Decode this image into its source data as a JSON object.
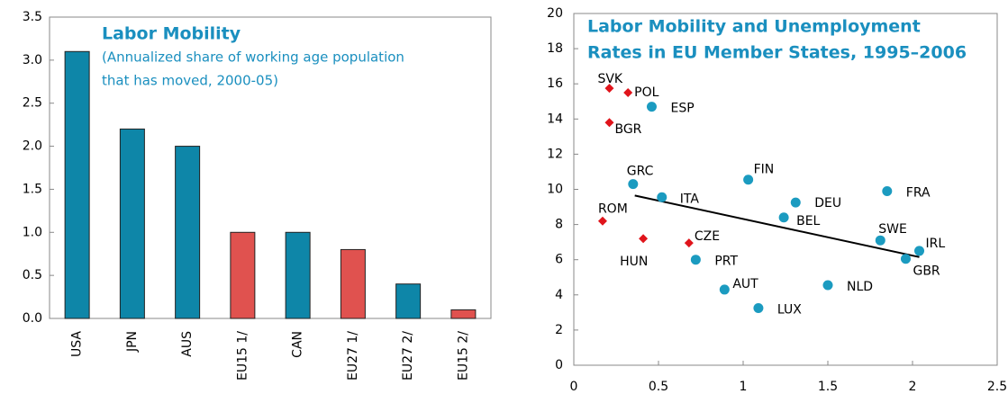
{
  "chart_data": [
    {
      "type": "bar",
      "title": "Labor Mobility",
      "subtitle": [
        "(Annualized share of working age population",
        "that has moved, 2000-05)"
      ],
      "categories": [
        "USA",
        "JPN",
        "AUS",
        "EU15 1/",
        "CAN",
        "EU27 1/",
        "EU27 2/",
        "EU15 2/"
      ],
      "values": [
        3.1,
        2.2,
        2.0,
        1.0,
        1.0,
        0.8,
        0.4,
        0.1
      ],
      "colors": [
        "#0e86a8",
        "#0e86a8",
        "#0e86a8",
        "#e0524f",
        "#0e86a8",
        "#e0524f",
        "#0e86a8",
        "#e0524f"
      ],
      "ylim": [
        0,
        3.5
      ],
      "yticks": [
        {
          "value": 0,
          "label": "0.0"
        },
        {
          "value": 0.5,
          "label": "0.5"
        },
        {
          "value": 1,
          "label": "1.0"
        },
        {
          "value": 1.5,
          "label": "1.5"
        },
        {
          "value": 2,
          "label": "2.0"
        },
        {
          "value": 2.5,
          "label": "2.5"
        },
        {
          "value": 3,
          "label": "3.0"
        },
        {
          "value": 3.5,
          "label": "3.5"
        }
      ]
    },
    {
      "type": "scatter",
      "title": [
        "Labor Mobility and Unemployment",
        "Rates in EU Member States, 1995–2006"
      ],
      "xlim": [
        0,
        2.5
      ],
      "xticks": [
        0,
        0.5,
        1,
        1.5,
        2,
        2.5
      ],
      "ylim": [
        0,
        20
      ],
      "yticks": [
        0,
        2,
        4,
        6,
        8,
        10,
        12,
        14,
        16,
        18,
        20
      ],
      "series": [
        {
          "color": "#e0141b",
          "marker": "diamond",
          "labels": [
            "SVK",
            "POL",
            "BGR",
            "ROM",
            "HUN",
            "CZE"
          ],
          "x": [
            0.21,
            0.32,
            0.21,
            0.17,
            0.41,
            0.68
          ],
          "values": [
            15.75,
            15.5,
            13.8,
            8.2,
            7.2,
            6.95
          ]
        },
        {
          "color": "#1b9bc0",
          "marker": "circle",
          "labels": [
            "ESP",
            "GRC",
            "ITA",
            "FIN",
            "DEU",
            "BEL",
            "FRA",
            "SWE",
            "IRL",
            "GBR",
            "PRT",
            "AUT",
            "NLD",
            "LUX"
          ],
          "x": [
            0.46,
            0.35,
            0.52,
            1.03,
            1.31,
            1.24,
            1.85,
            1.81,
            2.04,
            1.96,
            0.72,
            0.89,
            1.5,
            1.09
          ],
          "values": [
            14.7,
            10.3,
            9.55,
            10.55,
            9.25,
            8.4,
            9.9,
            7.1,
            6.5,
            6.05,
            6.0,
            4.3,
            4.55,
            3.25
          ]
        }
      ],
      "trend_line": {
        "color": "#000000",
        "x": [
          0.36,
          2.04
        ],
        "values": [
          9.65,
          6.15
        ]
      }
    }
  ]
}
